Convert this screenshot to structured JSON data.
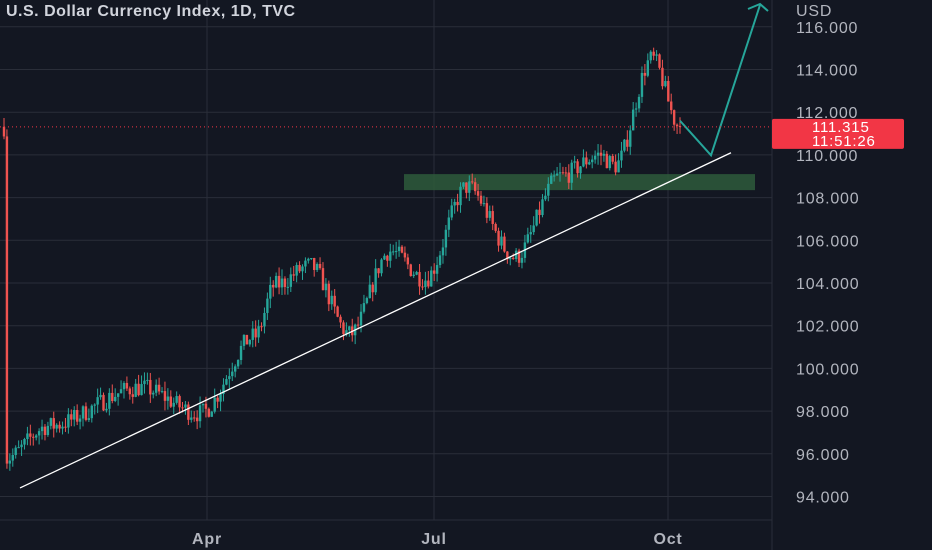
{
  "title": "U.S. Dollar Currency Index, 1D, TVC",
  "chart_data": {
    "type": "candlestick",
    "title": "U.S. Dollar Currency Index, 1D, TVC",
    "currency_label": "USD",
    "y_ticks": [
      "116.000",
      "114.000",
      "112.000",
      "110.000",
      "108.000",
      "106.000",
      "104.000",
      "102.000",
      "100.000",
      "98.000",
      "96.000",
      "94.000"
    ],
    "ylim": [
      93.3,
      117.0
    ],
    "x_ticks": [
      "Apr",
      "Jul",
      "Oct"
    ],
    "last_price": "111.315",
    "countdown": "11:51:26",
    "key_points": [
      {
        "x": "Jan",
        "y": 95.8
      },
      {
        "x": "late Jan",
        "y": 97.3
      },
      {
        "x": "Mar",
        "y": 99.1
      },
      {
        "x": "mid Mar",
        "y": 97.9
      },
      {
        "x": "mid Apr",
        "y": 101.5
      },
      {
        "x": "early May",
        "y": 103.9
      },
      {
        "x": "mid May",
        "y": 104.8
      },
      {
        "x": "late May",
        "y": 101.6
      },
      {
        "x": "mid Jun",
        "y": 105.5
      },
      {
        "x": "late Jun",
        "y": 104.2
      },
      {
        "x": "mid Jul",
        "y": 108.5
      },
      {
        "x": "early Aug",
        "y": 105.2
      },
      {
        "x": "late Aug",
        "y": 109.0
      },
      {
        "x": "early Sep",
        "y": 110.0
      },
      {
        "x": "mid Sep",
        "y": 109.5
      },
      {
        "x": "late Sep",
        "y": 114.5
      },
      {
        "x": "early Oct",
        "y": 111.315
      }
    ],
    "colors": {
      "background": "#131722",
      "up": "#26a69a",
      "down": "#ef5350",
      "grid": "#2a2e39",
      "axis_text": "#b2b5be",
      "trendline": "#ffffff",
      "zone": "#2e5a3b",
      "projection": "#26a69a",
      "price_tag": "#f23645"
    },
    "grid": true
  }
}
